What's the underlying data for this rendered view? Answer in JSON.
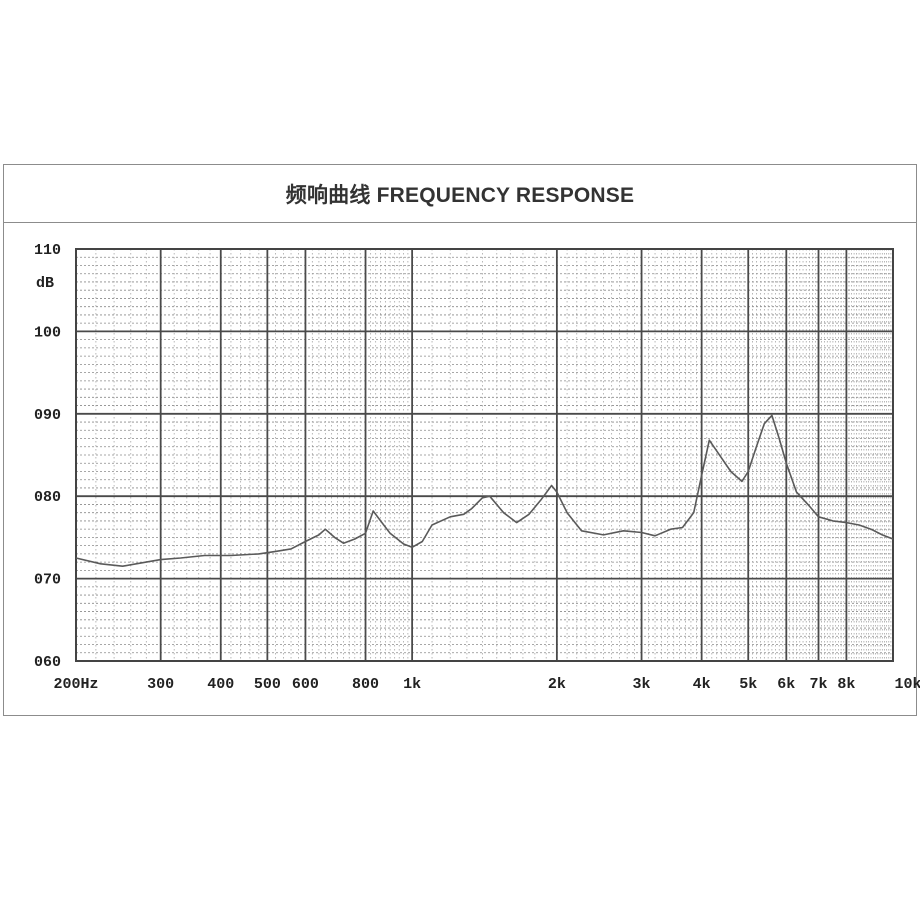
{
  "chart_data": {
    "type": "line",
    "title": "频响曲线  FREQUENCY RESPONSE",
    "ylabel": "dB",
    "xscale": "log",
    "xlim": [
      200,
      10000
    ],
    "ylim": [
      60,
      110
    ],
    "grid": true,
    "x_tick_labels": [
      {
        "value": 200,
        "label": "200Hz"
      },
      {
        "value": 300,
        "label": "300"
      },
      {
        "value": 400,
        "label": "400"
      },
      {
        "value": 500,
        "label": "500"
      },
      {
        "value": 600,
        "label": "600"
      },
      {
        "value": 800,
        "label": "800"
      },
      {
        "value": 1000,
        "label": "1k"
      },
      {
        "value": 2000,
        "label": "2k"
      },
      {
        "value": 3000,
        "label": "3k"
      },
      {
        "value": 4000,
        "label": "4k"
      },
      {
        "value": 5000,
        "label": "5k"
      },
      {
        "value": 6000,
        "label": "6k"
      },
      {
        "value": 7000,
        "label": "7k"
      },
      {
        "value": 8000,
        "label": "8k"
      },
      {
        "value": 10000,
        "label": "10k"
      }
    ],
    "y_tick_labels": [
      {
        "value": 110,
        "label": "110"
      },
      {
        "value": 100,
        "label": "100"
      },
      {
        "value": 90,
        "label": "090"
      },
      {
        "value": 80,
        "label": "080"
      },
      {
        "value": 70,
        "label": "070"
      },
      {
        "value": 60,
        "label": "060"
      }
    ],
    "series": [
      {
        "color": "#5a5a5a",
        "x": [
          200,
          225,
          250,
          280,
          300,
          330,
          370,
          420,
          480,
          520,
          560,
          600,
          640,
          660,
          690,
          720,
          760,
          800,
          830,
          860,
          900,
          960,
          1000,
          1050,
          1100,
          1200,
          1280,
          1330,
          1400,
          1450,
          1550,
          1650,
          1750,
          1850,
          1950,
          2000,
          2100,
          2250,
          2500,
          2750,
          3000,
          3200,
          3450,
          3650,
          3850,
          4000,
          4150,
          4300,
          4600,
          4850,
          5000,
          5200,
          5400,
          5600,
          5800,
          6000,
          6300,
          6700,
          7000,
          7500,
          8000,
          8500,
          9000,
          9500,
          10000
        ],
        "y": [
          72.5,
          71.8,
          71.5,
          72.0,
          72.3,
          72.5,
          72.8,
          72.8,
          73.0,
          73.3,
          73.6,
          74.5,
          75.3,
          76.0,
          75.0,
          74.3,
          74.8,
          75.5,
          78.2,
          77.0,
          75.5,
          74.2,
          73.8,
          74.5,
          76.5,
          77.5,
          77.8,
          78.5,
          79.8,
          80.0,
          78.0,
          76.8,
          77.8,
          79.5,
          81.3,
          80.5,
          78.0,
          75.8,
          75.3,
          75.8,
          75.6,
          75.2,
          76.0,
          76.2,
          78.0,
          82.5,
          86.8,
          85.5,
          83.0,
          81.8,
          83.0,
          86.0,
          88.8,
          89.8,
          87.0,
          84.0,
          80.5,
          78.8,
          77.5,
          77.0,
          76.8,
          76.5,
          76.0,
          75.3,
          74.8
        ]
      }
    ]
  }
}
